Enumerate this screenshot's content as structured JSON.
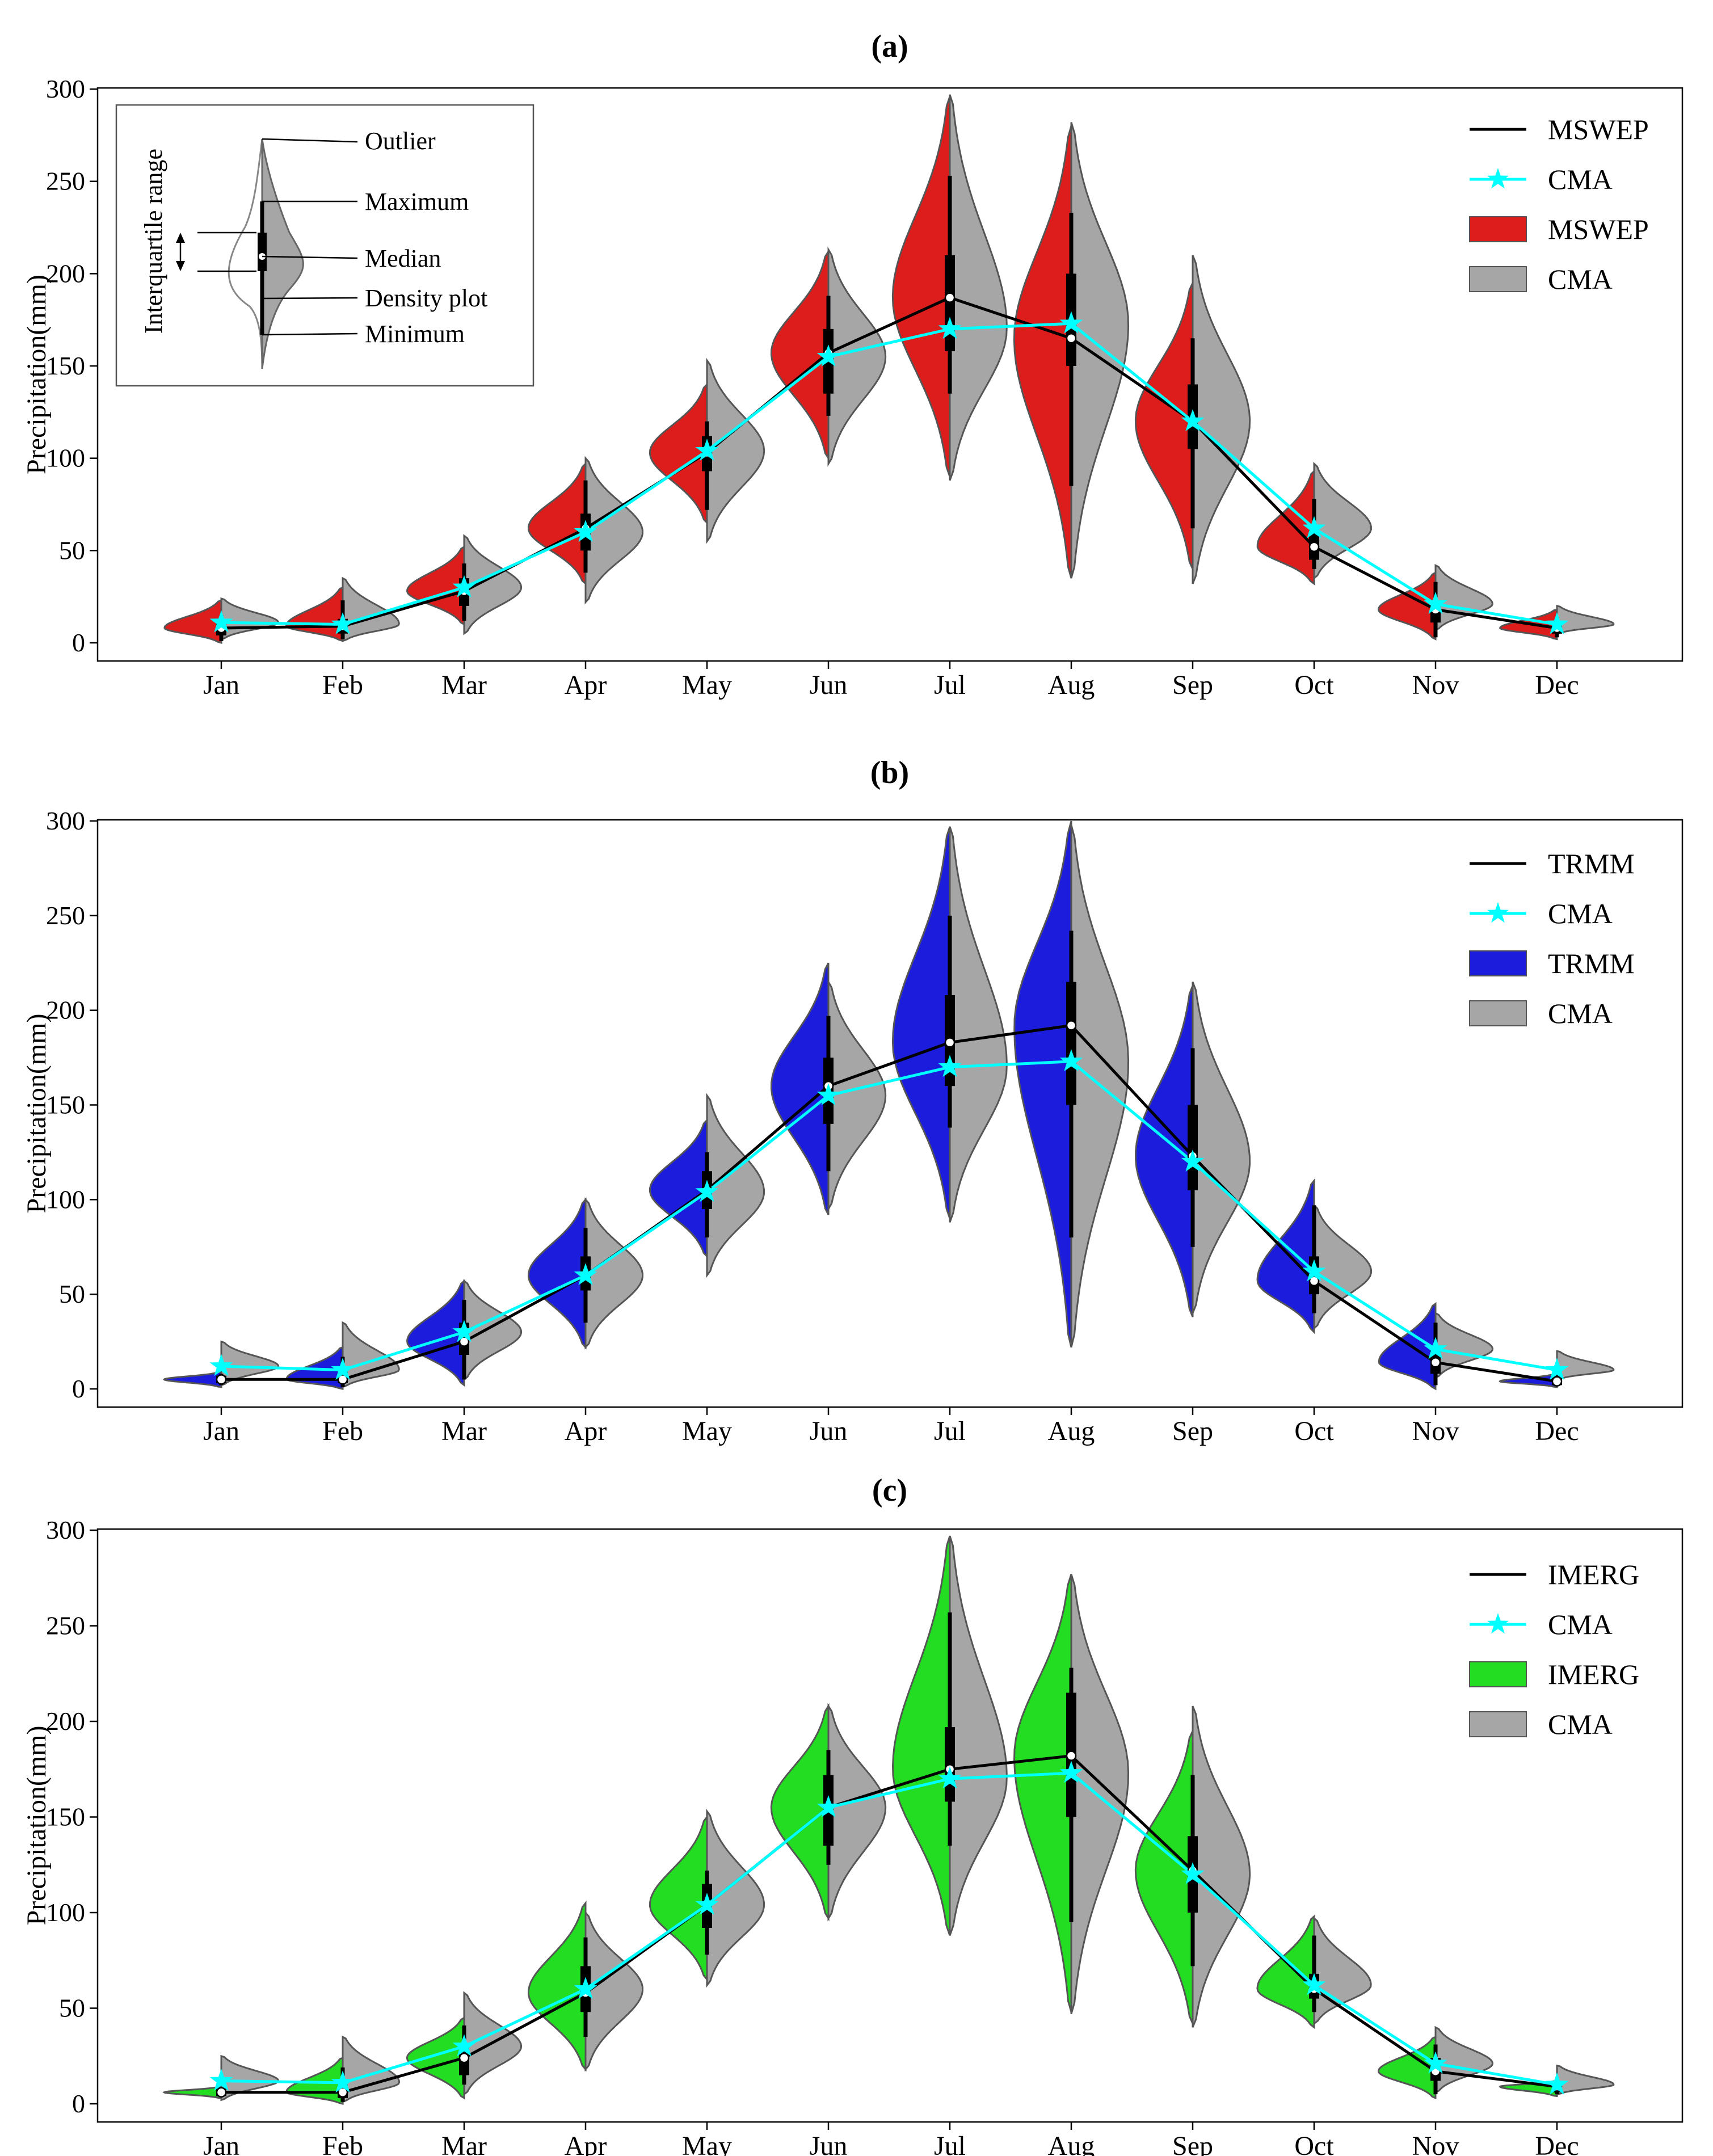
{
  "chart_data": [
    {
      "type": "violin",
      "title": "(a)",
      "ylabel": "Precipitation(mm)",
      "xlabel": "",
      "ylim": [
        0,
        300
      ],
      "yticks": [
        0,
        50,
        100,
        150,
        200,
        250,
        300
      ],
      "categories": [
        "Jan",
        "Feb",
        "Mar",
        "Apr",
        "May",
        "Jun",
        "Jul",
        "Aug",
        "Sep",
        "Oct",
        "Nov",
        "Dec"
      ],
      "series": [
        {
          "name": "MSWEP",
          "kind": "line",
          "color": "#000000",
          "values": [
            8,
            9,
            28,
            62,
            103,
            157,
            187,
            165,
            120,
            52,
            18,
            8
          ]
        },
        {
          "name": "CMA",
          "kind": "line-star",
          "color": "#00ffff",
          "values": [
            11,
            10,
            30,
            60,
            104,
            155,
            170,
            173,
            120,
            62,
            21,
            10
          ]
        },
        {
          "name": "MSWEP",
          "kind": "violin-left",
          "color": "#dd1c1c",
          "min": [
            0,
            1,
            10,
            32,
            65,
            100,
            90,
            35,
            40,
            32,
            2,
            2
          ],
          "q1": [
            4,
            5,
            20,
            50,
            93,
            135,
            158,
            150,
            105,
            45,
            11,
            5
          ],
          "median": [
            8,
            9,
            28,
            62,
            103,
            157,
            187,
            165,
            120,
            52,
            18,
            8
          ],
          "q3": [
            11,
            13,
            35,
            70,
            112,
            170,
            210,
            200,
            140,
            62,
            22,
            10
          ],
          "max": [
            23,
            30,
            52,
            97,
            140,
            212,
            296,
            280,
            195,
            93,
            38,
            18
          ],
          "whisker_low": [
            1,
            2,
            12,
            38,
            72,
            123,
            135,
            85,
            62,
            40,
            3,
            3
          ],
          "whisker_high": [
            15,
            23,
            43,
            88,
            120,
            188,
            253,
            233,
            165,
            78,
            33,
            14
          ]
        },
        {
          "name": "CMA",
          "kind": "violin-right",
          "color": "#a6a6a6",
          "min": [
            2,
            1,
            5,
            22,
            55,
            97,
            88,
            35,
            32,
            35,
            7,
            5
          ],
          "max": [
            24,
            35,
            58,
            100,
            153,
            213,
            297,
            282,
            210,
            97,
            42,
            20
          ],
          "center": [
            11,
            10,
            30,
            60,
            104,
            155,
            170,
            173,
            120,
            62,
            21,
            10
          ]
        }
      ]
    },
    {
      "type": "violin",
      "title": "(b)",
      "ylabel": "Precipitation(mm)",
      "xlabel": "",
      "ylim": [
        0,
        300
      ],
      "yticks": [
        0,
        50,
        100,
        150,
        200,
        250,
        300
      ],
      "categories": [
        "Jan",
        "Feb",
        "Mar",
        "Apr",
        "May",
        "Jun",
        "Jul",
        "Aug",
        "Sep",
        "Oct",
        "Nov",
        "Dec"
      ],
      "series": [
        {
          "name": "TRMM",
          "kind": "line",
          "color": "#000000",
          "values": [
            5,
            5,
            25,
            60,
            105,
            160,
            183,
            192,
            123,
            57,
            14,
            4
          ]
        },
        {
          "name": "CMA",
          "kind": "line-star",
          "color": "#00ffff",
          "values": [
            12,
            10,
            30,
            60,
            104,
            155,
            170,
            173,
            120,
            62,
            21,
            10
          ]
        },
        {
          "name": "TRMM",
          "kind": "violin-left",
          "color": "#1c1cdd",
          "min": [
            1,
            0,
            2,
            22,
            70,
            92,
            90,
            22,
            38,
            30,
            0,
            1
          ],
          "q1": [
            3,
            3,
            18,
            52,
            95,
            140,
            160,
            150,
            105,
            50,
            8,
            2
          ],
          "median": [
            5,
            5,
            25,
            60,
            105,
            160,
            183,
            192,
            123,
            57,
            14,
            4
          ],
          "q3": [
            7,
            9,
            35,
            70,
            115,
            175,
            208,
            215,
            150,
            70,
            22,
            7
          ],
          "max": [
            9,
            22,
            57,
            100,
            142,
            225,
            297,
            300,
            213,
            110,
            45,
            8
          ],
          "whisker_low": [
            2,
            1,
            5,
            35,
            80,
            115,
            138,
            80,
            75,
            40,
            2,
            2
          ],
          "whisker_high": [
            8,
            17,
            47,
            85,
            125,
            197,
            250,
            242,
            180,
            97,
            35,
            8
          ]
        },
        {
          "name": "CMA",
          "kind": "violin-right",
          "color": "#a6a6a6",
          "min": [
            2,
            1,
            5,
            22,
            60,
            95,
            88,
            22,
            40,
            32,
            6,
            5
          ],
          "max": [
            25,
            35,
            57,
            100,
            155,
            215,
            297,
            298,
            215,
            97,
            40,
            20
          ],
          "center": [
            12,
            10,
            30,
            60,
            104,
            155,
            170,
            173,
            120,
            62,
            21,
            10
          ]
        }
      ]
    },
    {
      "type": "violin",
      "title": "(c)",
      "ylabel": "Precipitation(mm)",
      "xlabel": "",
      "ylim": [
        0,
        300
      ],
      "yticks": [
        0,
        50,
        100,
        150,
        200,
        250,
        300
      ],
      "categories": [
        "Jan",
        "Feb",
        "Mar",
        "Apr",
        "May",
        "Jun",
        "Jul",
        "Aug",
        "Sep",
        "Oct",
        "Nov",
        "Dec"
      ],
      "series": [
        {
          "name": "IMERG",
          "kind": "line",
          "color": "#000000",
          "values": [
            6,
            6,
            24,
            58,
            104,
            155,
            175,
            182,
            122,
            60,
            17,
            9
          ]
        },
        {
          "name": "CMA",
          "kind": "line-star",
          "color": "#00ffff",
          "values": [
            12,
            11,
            30,
            60,
            104,
            155,
            170,
            173,
            120,
            62,
            21,
            10
          ]
        },
        {
          "name": "IMERG",
          "kind": "violin-left",
          "color": "#22dd22",
          "min": [
            3,
            0,
            3,
            18,
            65,
            97,
            88,
            48,
            42,
            40,
            3,
            4
          ],
          "q1": [
            4,
            3,
            15,
            48,
            92,
            135,
            158,
            150,
            100,
            55,
            12,
            6
          ],
          "median": [
            6,
            6,
            24,
            58,
            104,
            155,
            175,
            182,
            122,
            60,
            17,
            9
          ],
          "q3": [
            8,
            10,
            30,
            72,
            115,
            172,
            197,
            215,
            140,
            68,
            24,
            11
          ],
          "max": [
            9,
            24,
            45,
            105,
            150,
            208,
            297,
            277,
            195,
            98,
            35,
            12
          ],
          "whisker_low": [
            4,
            1,
            10,
            35,
            78,
            125,
            135,
            95,
            72,
            48,
            5,
            5
          ],
          "whisker_high": [
            8,
            19,
            41,
            87,
            122,
            185,
            257,
            228,
            172,
            88,
            31,
            11
          ]
        },
        {
          "name": "CMA",
          "kind": "violin-right",
          "color": "#a6a6a6",
          "min": [
            2,
            1,
            5,
            18,
            62,
            97,
            88,
            47,
            40,
            42,
            6,
            5
          ],
          "max": [
            25,
            35,
            58,
            100,
            153,
            208,
            297,
            277,
            208,
            97,
            40,
            20
          ],
          "center": [
            12,
            11,
            30,
            60,
            104,
            155,
            170,
            173,
            120,
            62,
            21,
            10
          ]
        }
      ]
    }
  ],
  "inset_legend": {
    "labels": [
      "Outlier",
      "Maximum",
      "Median",
      "Density plot",
      "Minimum"
    ],
    "range_label": "Interquartile range"
  },
  "legends": [
    [
      {
        "label": "MSWEP",
        "kind": "line"
      },
      {
        "label": "CMA",
        "kind": "star"
      },
      {
        "label": "MSWEP",
        "kind": "patch",
        "color": "#dd1c1c"
      },
      {
        "label": "CMA",
        "kind": "patch",
        "color": "#a6a6a6"
      }
    ],
    [
      {
        "label": "TRMM",
        "kind": "line"
      },
      {
        "label": "CMA",
        "kind": "star"
      },
      {
        "label": "TRMM",
        "kind": "patch",
        "color": "#1c1cdd"
      },
      {
        "label": "CMA",
        "kind": "patch",
        "color": "#a6a6a6"
      }
    ],
    [
      {
        "label": "IMERG",
        "kind": "line"
      },
      {
        "label": "CMA",
        "kind": "star"
      },
      {
        "label": "IMERG",
        "kind": "patch",
        "color": "#22dd22"
      },
      {
        "label": "CMA",
        "kind": "patch",
        "color": "#a6a6a6"
      }
    ]
  ]
}
